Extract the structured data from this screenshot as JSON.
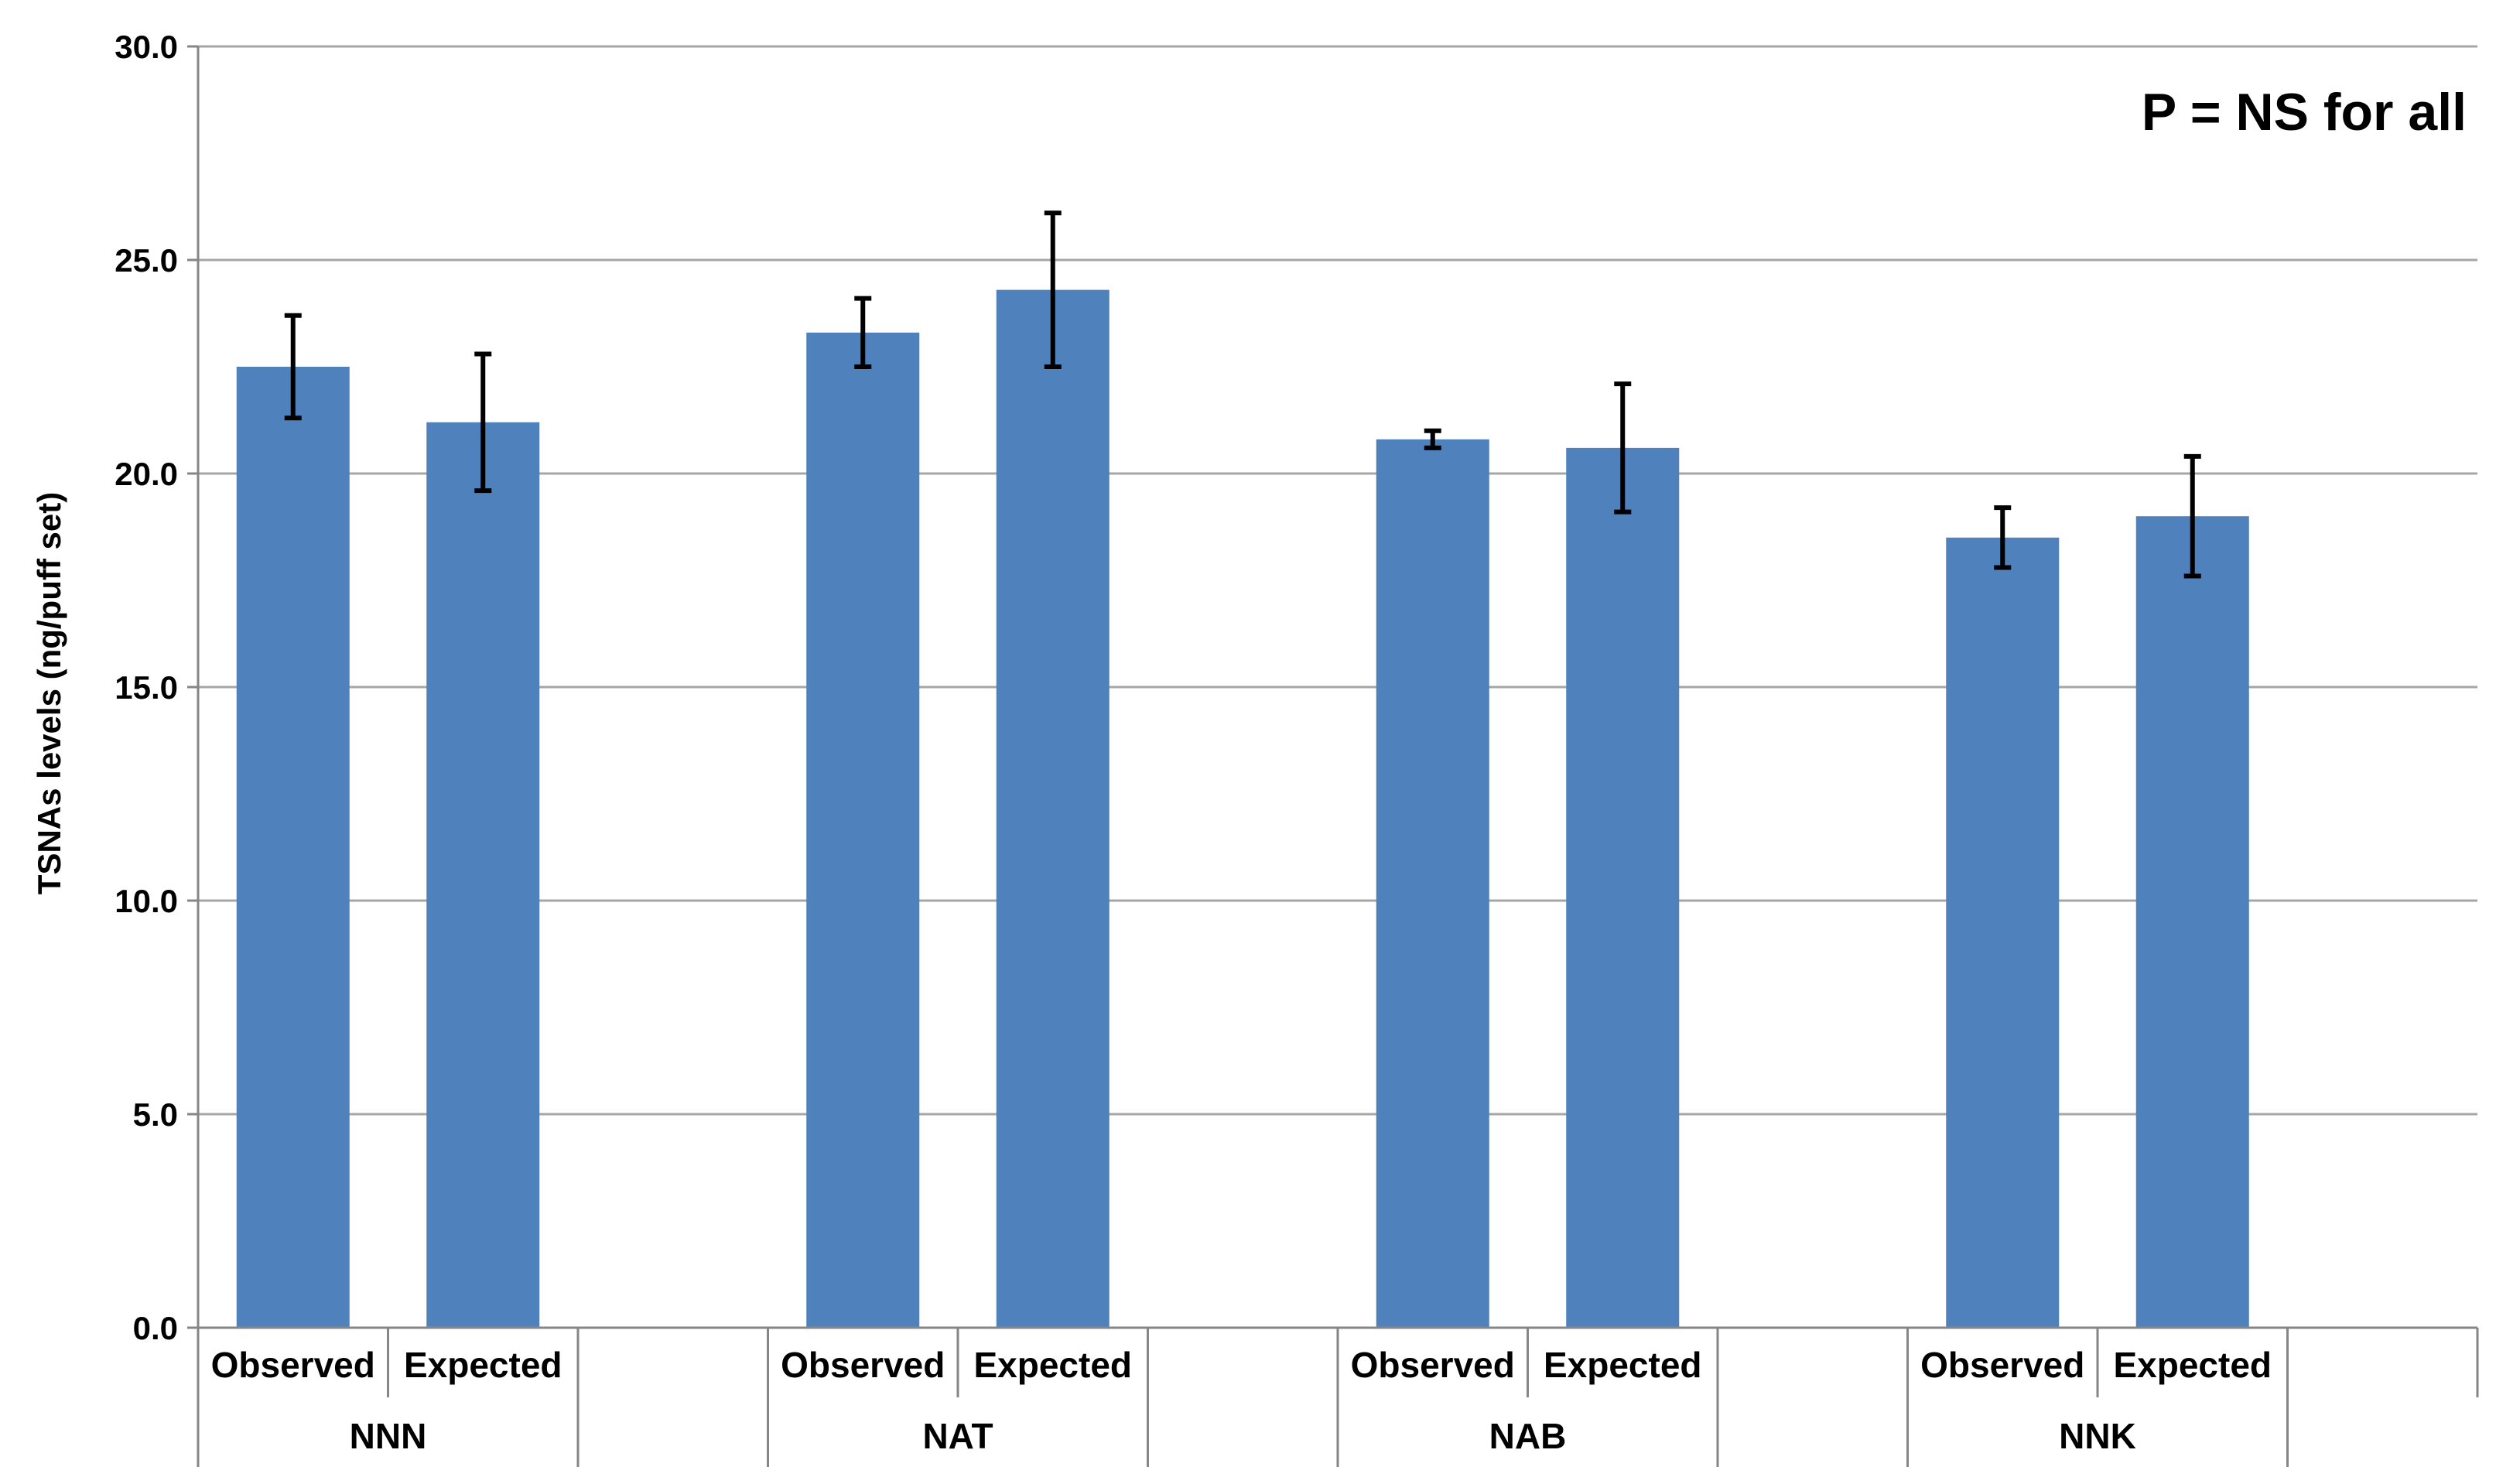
{
  "chart_data": {
    "type": "bar",
    "title": "",
    "xlabel": "",
    "ylabel": "TSNAs levels (ng/puff set)",
    "ylim": [
      0,
      30
    ],
    "yticks": [
      "0.0",
      "5.0",
      "10.0",
      "15.0",
      "20.0",
      "25.0",
      "30.0"
    ],
    "grid": true,
    "annotation": "P = NS for all",
    "bar_color": "#4F81BD",
    "groups": [
      {
        "name": "NNN",
        "bars": [
          {
            "label": "Observed",
            "value": 22.5,
            "err_low": 21.3,
            "err_high": 23.7
          },
          {
            "label": "Expected",
            "value": 21.2,
            "err_low": 19.6,
            "err_high": 22.8
          }
        ]
      },
      {
        "name": "NAT",
        "bars": [
          {
            "label": "Observed",
            "value": 23.3,
            "err_low": 22.5,
            "err_high": 24.1
          },
          {
            "label": "Expected",
            "value": 24.3,
            "err_low": 22.5,
            "err_high": 26.1
          }
        ]
      },
      {
        "name": "NAB",
        "bars": [
          {
            "label": "Observed",
            "value": 20.8,
            "err_low": 20.6,
            "err_high": 21.0
          },
          {
            "label": "Expected",
            "value": 20.6,
            "err_low": 19.1,
            "err_high": 22.1
          }
        ]
      },
      {
        "name": "NNK",
        "bars": [
          {
            "label": "Observed",
            "value": 18.5,
            "err_low": 17.8,
            "err_high": 19.2
          },
          {
            "label": "Expected",
            "value": 19.0,
            "err_low": 17.6,
            "err_high": 20.4
          }
        ]
      }
    ]
  }
}
